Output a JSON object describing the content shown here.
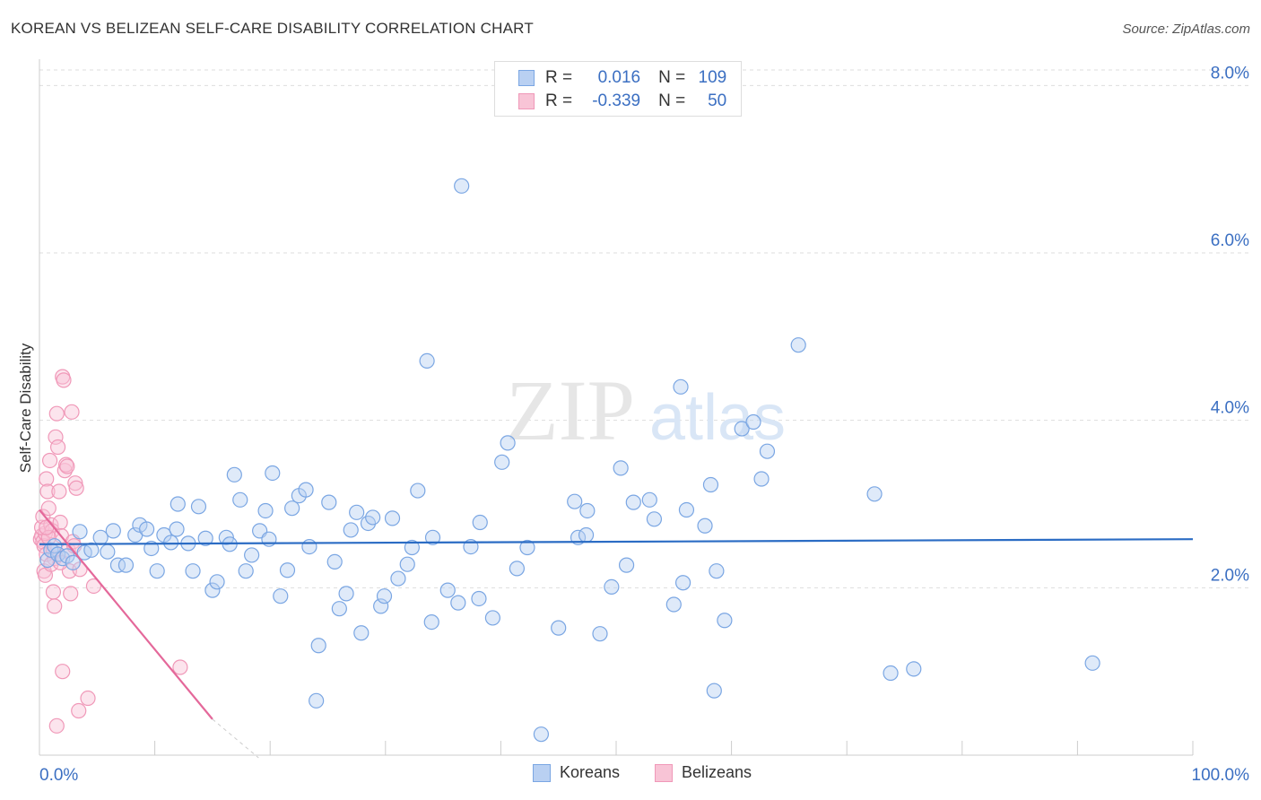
{
  "title": "KOREAN VS BELIZEAN SELF-CARE DISABILITY CORRELATION CHART",
  "source": "Source: ZipAtlas.com",
  "watermark": {
    "zip": "ZIP",
    "atlas": "atlas"
  },
  "colors": {
    "korean": "#7aa6e3",
    "korean_fill": "#b9d0f2",
    "korean_line": "#2b6cc4",
    "belizean": "#f098b8",
    "belizean_fill": "#f8c4d6",
    "belizean_line": "#e4689a",
    "axis_label": "#3b6fc2"
  },
  "legend": {
    "rows": [
      {
        "r_label": "R =",
        "r_value": "0.016",
        "n_label": "N =",
        "n_value": "109"
      },
      {
        "r_label": "R =",
        "r_value": "-0.339",
        "n_label": "N =",
        "n_value": "50"
      }
    ]
  },
  "bottom_legend": {
    "koreans": "Koreans",
    "belizeans": "Belizeans"
  },
  "chart_data": {
    "type": "scatter",
    "title": "KOREAN VS BELIZEAN SELF-CARE DISABILITY CORRELATION CHART",
    "xlabel": "",
    "ylabel": "Self-Care Disability",
    "xlim": [
      0,
      100
    ],
    "ylim": [
      0,
      8.4
    ],
    "x_tick_labels": [
      "0.0%",
      "100.0%"
    ],
    "y_ticks": [
      2,
      4,
      6,
      8
    ],
    "y_tick_labels": [
      "2.0%",
      "4.0%",
      "6.0%",
      "8.0%"
    ],
    "grid": "horizontal dashed",
    "legend_position": "top-center",
    "series": [
      {
        "name": "Koreans",
        "r": 0.016,
        "n": 109,
        "trend": {
          "x": [
            0,
            100
          ],
          "y": [
            2.52,
            2.58
          ]
        },
        "points": [
          [
            0.7,
            2.33
          ],
          [
            1.0,
            2.45
          ],
          [
            1.3,
            2.5
          ],
          [
            1.6,
            2.4
          ],
          [
            2.0,
            2.35
          ],
          [
            2.4,
            2.38
          ],
          [
            2.9,
            2.3
          ],
          [
            3.5,
            2.67
          ],
          [
            3.9,
            2.42
          ],
          [
            4.5,
            2.45
          ],
          [
            5.3,
            2.6
          ],
          [
            5.9,
            2.43
          ],
          [
            6.4,
            2.68
          ],
          [
            6.8,
            2.27
          ],
          [
            7.5,
            2.27
          ],
          [
            8.3,
            2.63
          ],
          [
            8.7,
            2.75
          ],
          [
            9.3,
            2.7
          ],
          [
            9.7,
            2.47
          ],
          [
            10.2,
            2.2
          ],
          [
            10.8,
            2.63
          ],
          [
            11.4,
            2.54
          ],
          [
            11.9,
            2.7
          ],
          [
            12.0,
            3.0
          ],
          [
            12.9,
            2.53
          ],
          [
            13.3,
            2.2
          ],
          [
            13.8,
            2.97
          ],
          [
            14.4,
            2.59
          ],
          [
            15.0,
            1.97
          ],
          [
            15.4,
            2.07
          ],
          [
            16.2,
            2.6
          ],
          [
            16.5,
            2.52
          ],
          [
            16.9,
            3.35
          ],
          [
            17.4,
            3.05
          ],
          [
            17.9,
            2.2
          ],
          [
            18.4,
            2.39
          ],
          [
            19.1,
            2.68
          ],
          [
            19.6,
            2.92
          ],
          [
            19.9,
            2.58
          ],
          [
            20.2,
            3.37
          ],
          [
            20.9,
            1.9
          ],
          [
            21.5,
            2.21
          ],
          [
            21.9,
            2.95
          ],
          [
            22.5,
            3.1
          ],
          [
            23.1,
            3.17
          ],
          [
            23.4,
            2.49
          ],
          [
            24.2,
            1.31
          ],
          [
            24.0,
            0.65
          ],
          [
            25.1,
            3.02
          ],
          [
            25.6,
            2.31
          ],
          [
            26.0,
            1.75
          ],
          [
            26.6,
            1.93
          ],
          [
            27.0,
            2.69
          ],
          [
            27.5,
            2.9
          ],
          [
            27.9,
            1.46
          ],
          [
            28.5,
            2.77
          ],
          [
            28.9,
            2.84
          ],
          [
            29.6,
            1.78
          ],
          [
            29.9,
            1.9
          ],
          [
            30.6,
            2.83
          ],
          [
            31.1,
            2.11
          ],
          [
            31.9,
            2.28
          ],
          [
            32.3,
            2.48
          ],
          [
            32.8,
            3.16
          ],
          [
            33.6,
            4.71
          ],
          [
            34.0,
            1.59
          ],
          [
            35.4,
            1.97
          ],
          [
            36.3,
            1.82
          ],
          [
            36.6,
            6.8
          ],
          [
            37.4,
            2.49
          ],
          [
            38.2,
            2.78
          ],
          [
            38.1,
            1.87
          ],
          [
            39.3,
            1.64
          ],
          [
            40.1,
            3.5
          ],
          [
            40.6,
            3.73
          ],
          [
            41.4,
            2.23
          ],
          [
            42.3,
            2.48
          ],
          [
            43.5,
            0.25
          ],
          [
            45.0,
            1.52
          ],
          [
            46.4,
            3.03
          ],
          [
            46.7,
            2.6
          ],
          [
            47.4,
            2.63
          ],
          [
            47.5,
            2.92
          ],
          [
            48.6,
            1.45
          ],
          [
            49.6,
            2.01
          ],
          [
            50.4,
            3.43
          ],
          [
            50.9,
            2.27
          ],
          [
            51.5,
            3.02
          ],
          [
            52.9,
            3.05
          ],
          [
            53.3,
            2.82
          ],
          [
            55.0,
            1.8
          ],
          [
            55.8,
            2.06
          ],
          [
            56.1,
            2.93
          ],
          [
            55.6,
            4.4
          ],
          [
            57.7,
            2.74
          ],
          [
            58.2,
            3.23
          ],
          [
            58.5,
            0.77
          ],
          [
            58.7,
            2.2
          ],
          [
            59.4,
            1.61
          ],
          [
            60.9,
            3.9
          ],
          [
            61.9,
            3.98
          ],
          [
            62.6,
            3.3
          ],
          [
            63.1,
            3.63
          ],
          [
            65.8,
            4.9
          ],
          [
            72.4,
            3.12
          ],
          [
            73.8,
            0.98
          ],
          [
            75.8,
            1.03
          ],
          [
            91.3,
            1.1
          ],
          [
            34.1,
            2.6
          ]
        ]
      },
      {
        "name": "Belizeans",
        "r": -0.339,
        "n": 50,
        "trend": {
          "x": [
            0,
            15
          ],
          "y": [
            2.93,
            0.43
          ]
        },
        "trend_dashed": {
          "x": [
            15,
            19
          ],
          "y": [
            0.43,
            -0.24
          ]
        },
        "points": [
          [
            0.1,
            2.58
          ],
          [
            0.2,
            2.62
          ],
          [
            0.3,
            2.55
          ],
          [
            0.4,
            2.5
          ],
          [
            0.5,
            2.65
          ],
          [
            0.6,
            2.4
          ],
          [
            0.2,
            2.72
          ],
          [
            0.3,
            2.85
          ],
          [
            0.4,
            2.2
          ],
          [
            0.5,
            2.15
          ],
          [
            0.6,
            3.3
          ],
          [
            0.7,
            3.15
          ],
          [
            0.8,
            2.95
          ],
          [
            0.9,
            3.52
          ],
          [
            1.0,
            2.75
          ],
          [
            1.1,
            2.68
          ],
          [
            1.2,
            2.43
          ],
          [
            1.3,
            2.35
          ],
          [
            1.4,
            3.8
          ],
          [
            1.5,
            4.08
          ],
          [
            1.6,
            3.68
          ],
          [
            1.7,
            3.15
          ],
          [
            1.8,
            2.78
          ],
          [
            1.9,
            2.62
          ],
          [
            2.0,
            4.52
          ],
          [
            2.1,
            4.48
          ],
          [
            2.2,
            3.4
          ],
          [
            2.3,
            3.47
          ],
          [
            2.4,
            3.45
          ],
          [
            2.5,
            2.45
          ],
          [
            2.6,
            2.2
          ],
          [
            2.7,
            1.93
          ],
          [
            2.8,
            4.1
          ],
          [
            2.9,
            2.55
          ],
          [
            3.0,
            2.5
          ],
          [
            3.1,
            3.25
          ],
          [
            3.2,
            3.19
          ],
          [
            1.2,
            1.95
          ],
          [
            1.3,
            1.78
          ],
          [
            1.5,
            0.35
          ],
          [
            2.0,
            1.0
          ],
          [
            3.4,
            0.53
          ],
          [
            4.2,
            0.68
          ],
          [
            4.7,
            2.02
          ],
          [
            12.2,
            1.05
          ],
          [
            1.0,
            2.28
          ],
          [
            0.8,
            2.6
          ],
          [
            0.6,
            2.72
          ],
          [
            1.8,
            2.3
          ],
          [
            3.5,
            2.22
          ]
        ]
      }
    ]
  }
}
